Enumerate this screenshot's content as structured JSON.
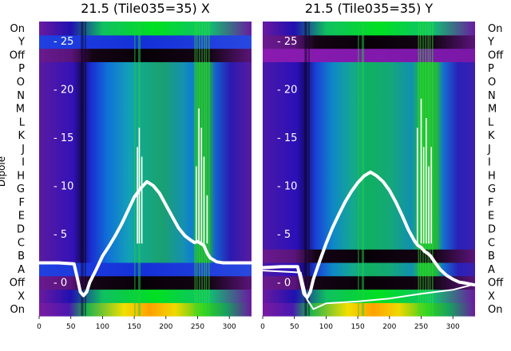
{
  "chart_data": [
    {
      "type": "heatmap",
      "title": "21.5 (Tile035=35) X",
      "ylabel": "Dipole",
      "x_ticks": [
        "0",
        "50",
        "100",
        "150",
        "200",
        "250",
        "300"
      ],
      "xlim": [
        0,
        335
      ],
      "overlay_y_ticks": [
        "- 25",
        "- 20",
        "- 15",
        "- 10",
        "- 5",
        "- 0"
      ],
      "overlay_ylim": [
        -3.5,
        27
      ],
      "rows": [
        "On",
        "X",
        "Off",
        "A",
        "B",
        "C",
        "D",
        "E",
        "F",
        "G",
        "H",
        "I",
        "J",
        "K",
        "L",
        "M",
        "N",
        "O",
        "P",
        "Off",
        "Y",
        "On"
      ],
      "series": [
        {
          "x": [
            0,
            30,
            55,
            60,
            65,
            70,
            75,
            80,
            90,
            100,
            110,
            120,
            130,
            140,
            150,
            160,
            170,
            180,
            190,
            200,
            210,
            220,
            230,
            240,
            245,
            250,
            255,
            260,
            265,
            270,
            280,
            290,
            300,
            310,
            320,
            335
          ],
          "y": [
            2.0,
            2.0,
            1.9,
            0.5,
            -1.0,
            -1.4,
            -1.0,
            0.0,
            1.3,
            2.7,
            3.7,
            4.8,
            6.0,
            7.4,
            8.8,
            9.7,
            10.4,
            10.0,
            9.2,
            8.0,
            6.8,
            5.6,
            4.8,
            4.3,
            4.1,
            4.2,
            4.0,
            3.8,
            3.0,
            2.5,
            2.1,
            2.0,
            2.0,
            2.0,
            2.0,
            2.0
          ]
        }
      ]
    },
    {
      "type": "heatmap",
      "title": "21.5 (Tile035=35) Y",
      "x_ticks": [
        "0",
        "50",
        "100",
        "150",
        "200",
        "250",
        "300"
      ],
      "xlim": [
        0,
        335
      ],
      "overlay_y_ticks": [
        "- 25",
        "- 20",
        "- 15",
        "- 10",
        "- 5",
        "- 0"
      ],
      "overlay_ylim": [
        -3.5,
        27
      ],
      "rows": [
        "On",
        "X",
        "Off",
        "A",
        "B",
        "C",
        "D",
        "E",
        "F",
        "G",
        "H",
        "I",
        "J",
        "K",
        "L",
        "M",
        "N",
        "O",
        "P",
        "Off",
        "Y",
        "On"
      ],
      "series": [
        {
          "x": [
            0,
            30,
            55,
            60,
            65,
            70,
            75,
            80,
            90,
            100,
            110,
            120,
            130,
            140,
            150,
            160,
            170,
            180,
            190,
            200,
            210,
            220,
            230,
            240,
            245,
            250,
            255,
            260,
            265,
            270,
            280,
            290,
            300,
            310,
            320,
            335
          ],
          "y": [
            1.5,
            1.6,
            1.6,
            0.3,
            -1.2,
            -1.6,
            -1.0,
            0.3,
            2.2,
            4.0,
            5.6,
            7.0,
            8.3,
            9.4,
            10.3,
            11.0,
            11.4,
            11.0,
            10.4,
            9.5,
            8.3,
            6.9,
            5.4,
            4.2,
            3.8,
            3.6,
            3.2,
            3.0,
            2.7,
            2.2,
            1.3,
            0.7,
            0.3,
            0.0,
            -0.1,
            -0.3
          ]
        },
        {
          "x": [
            0,
            60,
            70,
            80,
            100,
            150,
            200,
            250,
            300,
            335
          ],
          "y": [
            1.2,
            1.0,
            -1.8,
            -2.8,
            -2.2,
            -2.0,
            -1.7,
            -1.2,
            -0.8,
            -0.2
          ]
        }
      ]
    }
  ]
}
